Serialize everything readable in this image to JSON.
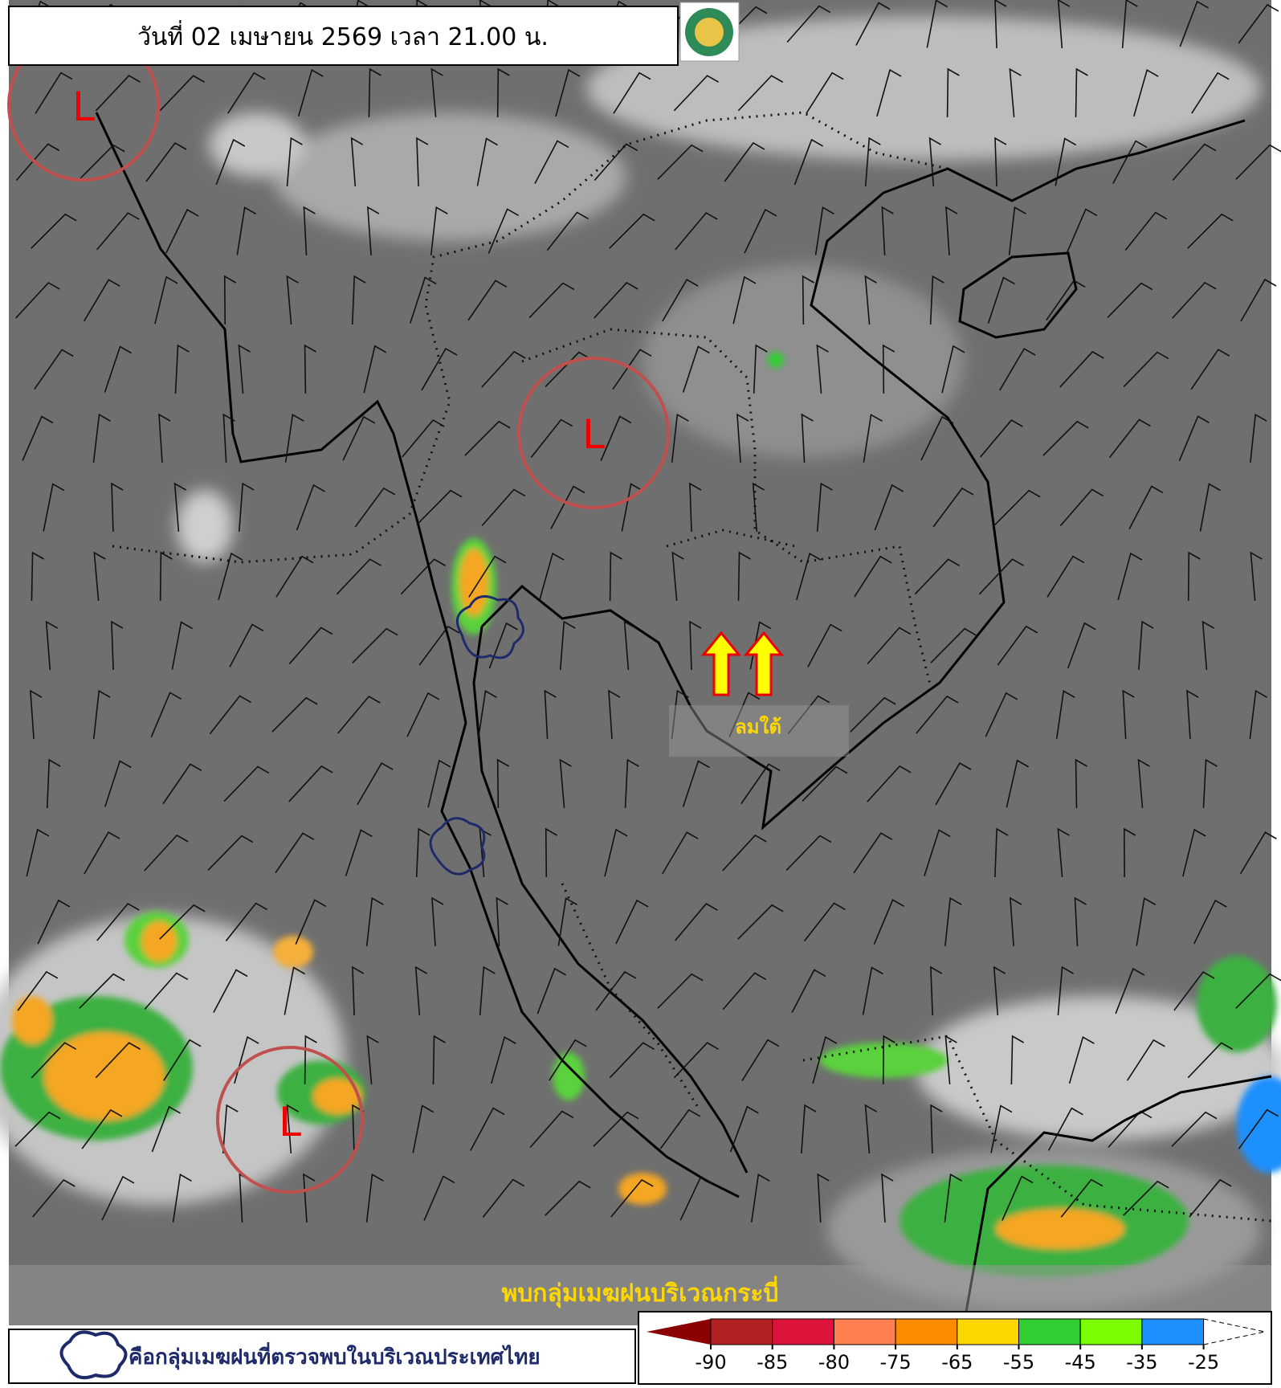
{
  "header": {
    "title": "วันที่ 02 เมษายน 2569 เวลา 21.00 น."
  },
  "map": {
    "lows": [
      "L",
      "L",
      "L"
    ],
    "wind_label": "ลมใต้",
    "banner": "พบกลุ่มเมฆฝนบริเวณกระบี่"
  },
  "legend": {
    "text": "คือกลุ่มเมฆฝนที่ตรวจพบในบริเวณประเทศไทย"
  },
  "colorbar": {
    "ticks": [
      -90,
      -85,
      -80,
      -75,
      -65,
      -55,
      -45,
      -35,
      -25
    ],
    "colors": [
      "#8b0000",
      "#b22222",
      "#dc143c",
      "#ff7f50",
      "#ff8c00",
      "#ffd700",
      "#32cd32",
      "#7cfc00",
      "#1e90ff"
    ]
  }
}
